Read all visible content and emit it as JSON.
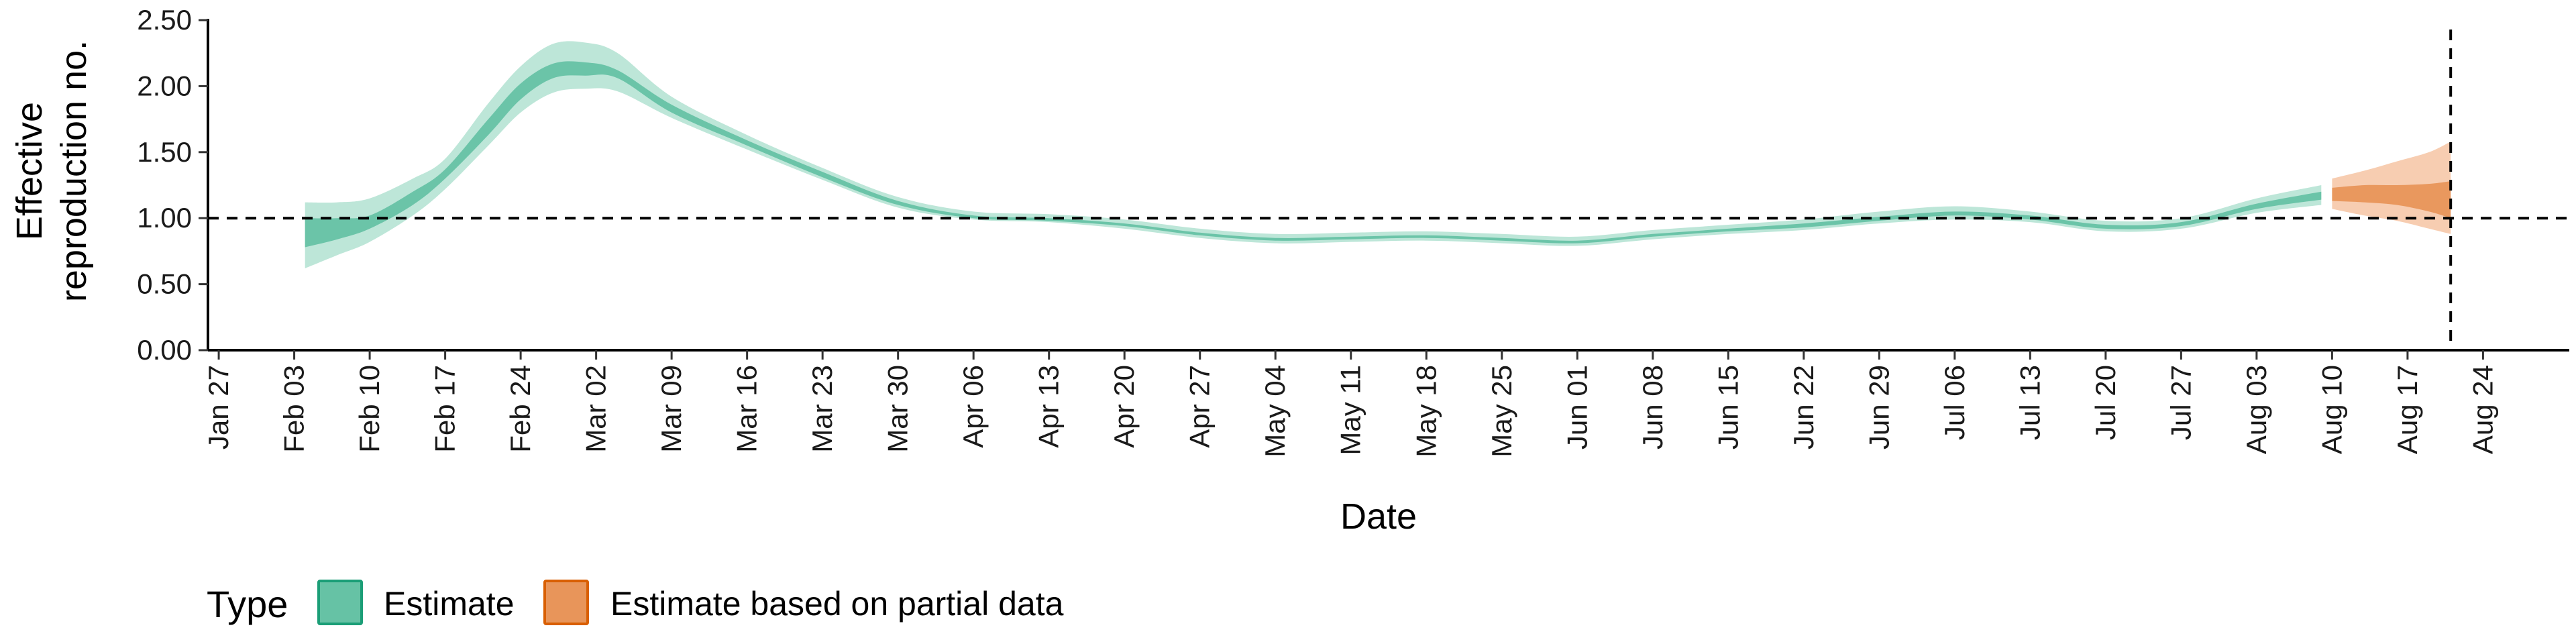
{
  "chart_data": {
    "type": "area",
    "title": "",
    "xlabel": "Date",
    "ylabel_lines": [
      "Effective",
      "reproduction no."
    ],
    "y_ticks": [
      0.0,
      0.5,
      1.0,
      1.5,
      2.0,
      2.5
    ],
    "y_tick_labels": [
      "0.00",
      "0.50",
      "1.00",
      "1.50",
      "2.00",
      "2.50"
    ],
    "ylim": [
      0,
      2.5
    ],
    "x_range": [
      "2020-01-26",
      "2020-09-01"
    ],
    "x_ticks": [
      "2020-01-27",
      "2020-02-03",
      "2020-02-10",
      "2020-02-17",
      "2020-02-24",
      "2020-03-02",
      "2020-03-09",
      "2020-03-16",
      "2020-03-23",
      "2020-03-30",
      "2020-04-06",
      "2020-04-13",
      "2020-04-20",
      "2020-04-27",
      "2020-05-04",
      "2020-05-11",
      "2020-05-18",
      "2020-05-25",
      "2020-06-01",
      "2020-06-08",
      "2020-06-15",
      "2020-06-22",
      "2020-06-29",
      "2020-07-06",
      "2020-07-13",
      "2020-07-20",
      "2020-07-27",
      "2020-08-03",
      "2020-08-10",
      "2020-08-17",
      "2020-08-24"
    ],
    "x_tick_labels": [
      "Jan 27",
      "Feb 03",
      "Feb 10",
      "Feb 17",
      "Feb 24",
      "Mar 02",
      "Mar 09",
      "Mar 16",
      "Mar 23",
      "Mar 30",
      "Apr 06",
      "Apr 13",
      "Apr 20",
      "Apr 27",
      "May 04",
      "May 11",
      "May 18",
      "May 25",
      "Jun 01",
      "Jun 08",
      "Jun 15",
      "Jun 22",
      "Jun 29",
      "Jul 06",
      "Jul 13",
      "Jul 20",
      "Jul 27",
      "Aug 03",
      "Aug 10",
      "Aug 17",
      "Aug 24"
    ],
    "reference_line_y": 1.0,
    "vertical_line_x": "2020-08-21",
    "legend": {
      "title": "Type",
      "position": "bottom-left",
      "entries": [
        {
          "label": "Estimate",
          "fill": "#66c2a5",
          "border": "#1b9e77"
        },
        {
          "label": "Estimate based on partial data",
          "fill": "#e8955a",
          "border": "#d95f02"
        }
      ]
    },
    "series": [
      {
        "name": "Estimate",
        "color_outer": "#b6e3d4",
        "color_inner": "#66c2a5",
        "points": [
          {
            "x": "2020-02-04",
            "lo90": 0.62,
            "lo50": 0.78,
            "hi50": 1.0,
            "hi90": 1.12
          },
          {
            "x": "2020-02-07",
            "lo90": 0.72,
            "lo50": 0.84,
            "hi50": 1.0,
            "hi90": 1.12
          },
          {
            "x": "2020-02-10",
            "lo90": 0.82,
            "lo50": 0.92,
            "hi50": 1.02,
            "hi90": 1.15
          },
          {
            "x": "2020-02-14",
            "lo90": 1.02,
            "lo50": 1.1,
            "hi50": 1.2,
            "hi90": 1.3
          },
          {
            "x": "2020-02-17",
            "lo90": 1.22,
            "lo50": 1.3,
            "hi50": 1.37,
            "hi90": 1.45
          },
          {
            "x": "2020-02-21",
            "lo90": 1.55,
            "lo50": 1.63,
            "hi50": 1.75,
            "hi90": 1.87
          },
          {
            "x": "2020-02-24",
            "lo90": 1.8,
            "lo50": 1.9,
            "hi50": 2.02,
            "hi90": 2.15
          },
          {
            "x": "2020-02-27",
            "lo90": 1.95,
            "lo50": 2.06,
            "hi50": 2.17,
            "hi90": 2.32
          },
          {
            "x": "2020-03-01",
            "lo90": 1.98,
            "lo50": 2.08,
            "hi50": 2.18,
            "hi90": 2.33
          },
          {
            "x": "2020-03-04",
            "lo90": 1.96,
            "lo50": 2.06,
            "hi50": 2.12,
            "hi90": 2.25
          },
          {
            "x": "2020-03-09",
            "lo90": 1.76,
            "lo50": 1.8,
            "hi50": 1.86,
            "hi90": 1.92
          },
          {
            "x": "2020-03-16",
            "lo90": 1.52,
            "lo50": 1.55,
            "hi50": 1.59,
            "hi90": 1.63
          },
          {
            "x": "2020-03-23",
            "lo90": 1.29,
            "lo50": 1.31,
            "hi50": 1.35,
            "hi90": 1.38
          },
          {
            "x": "2020-03-30",
            "lo90": 1.08,
            "lo50": 1.1,
            "hi50": 1.13,
            "hi90": 1.16
          },
          {
            "x": "2020-04-06",
            "lo90": 0.99,
            "lo50": 1.0,
            "hi50": 1.02,
            "hi90": 1.05
          },
          {
            "x": "2020-04-13",
            "lo90": 0.97,
            "lo50": 0.98,
            "hi50": 1.0,
            "hi90": 1.03
          },
          {
            "x": "2020-04-20",
            "lo90": 0.92,
            "lo50": 0.94,
            "hi50": 0.96,
            "hi90": 0.99
          },
          {
            "x": "2020-04-27",
            "lo90": 0.85,
            "lo50": 0.87,
            "hi50": 0.89,
            "hi90": 0.92
          },
          {
            "x": "2020-05-04",
            "lo90": 0.81,
            "lo50": 0.83,
            "hi50": 0.85,
            "hi90": 0.88
          },
          {
            "x": "2020-05-11",
            "lo90": 0.82,
            "lo50": 0.84,
            "hi50": 0.86,
            "hi90": 0.89
          },
          {
            "x": "2020-05-18",
            "lo90": 0.83,
            "lo50": 0.85,
            "hi50": 0.87,
            "hi90": 0.9
          },
          {
            "x": "2020-05-25",
            "lo90": 0.81,
            "lo50": 0.83,
            "hi50": 0.85,
            "hi90": 0.88
          },
          {
            "x": "2020-06-01",
            "lo90": 0.79,
            "lo50": 0.81,
            "hi50": 0.83,
            "hi90": 0.86
          },
          {
            "x": "2020-06-08",
            "lo90": 0.84,
            "lo50": 0.86,
            "hi50": 0.88,
            "hi90": 0.91
          },
          {
            "x": "2020-06-15",
            "lo90": 0.88,
            "lo50": 0.9,
            "hi50": 0.92,
            "hi90": 0.95
          },
          {
            "x": "2020-06-22",
            "lo90": 0.91,
            "lo50": 0.93,
            "hi50": 0.96,
            "hi90": 0.99
          },
          {
            "x": "2020-06-29",
            "lo90": 0.96,
            "lo50": 0.98,
            "hi50": 1.01,
            "hi90": 1.05
          },
          {
            "x": "2020-07-06",
            "lo90": 0.99,
            "lo50": 1.02,
            "hi50": 1.05,
            "hi90": 1.09
          },
          {
            "x": "2020-07-13",
            "lo90": 0.97,
            "lo50": 0.99,
            "hi50": 1.02,
            "hi90": 1.05
          },
          {
            "x": "2020-07-20",
            "lo90": 0.9,
            "lo50": 0.92,
            "hi50": 0.95,
            "hi90": 0.98
          },
          {
            "x": "2020-07-27",
            "lo90": 0.92,
            "lo50": 0.94,
            "hi50": 0.97,
            "hi90": 1.0
          },
          {
            "x": "2020-08-03",
            "lo90": 1.04,
            "lo50": 1.07,
            "hi50": 1.11,
            "hi90": 1.15
          },
          {
            "x": "2020-08-09",
            "lo90": 1.1,
            "lo50": 1.14,
            "hi50": 1.2,
            "hi90": 1.25
          }
        ]
      },
      {
        "name": "Estimate based on partial data",
        "color_outer": "#f6c8a8",
        "color_inner": "#e8955a",
        "points": [
          {
            "x": "2020-08-10",
            "lo90": 1.07,
            "lo50": 1.13,
            "hi50": 1.23,
            "hi90": 1.3
          },
          {
            "x": "2020-08-13",
            "lo90": 1.02,
            "lo50": 1.12,
            "hi50": 1.25,
            "hi90": 1.36
          },
          {
            "x": "2020-08-16",
            "lo90": 0.98,
            "lo50": 1.1,
            "hi50": 1.25,
            "hi90": 1.43
          },
          {
            "x": "2020-08-19",
            "lo90": 0.92,
            "lo50": 1.05,
            "hi50": 1.26,
            "hi90": 1.5
          },
          {
            "x": "2020-08-21",
            "lo90": 0.88,
            "lo50": 1.0,
            "hi50": 1.28,
            "hi90": 1.58
          }
        ]
      }
    ]
  }
}
